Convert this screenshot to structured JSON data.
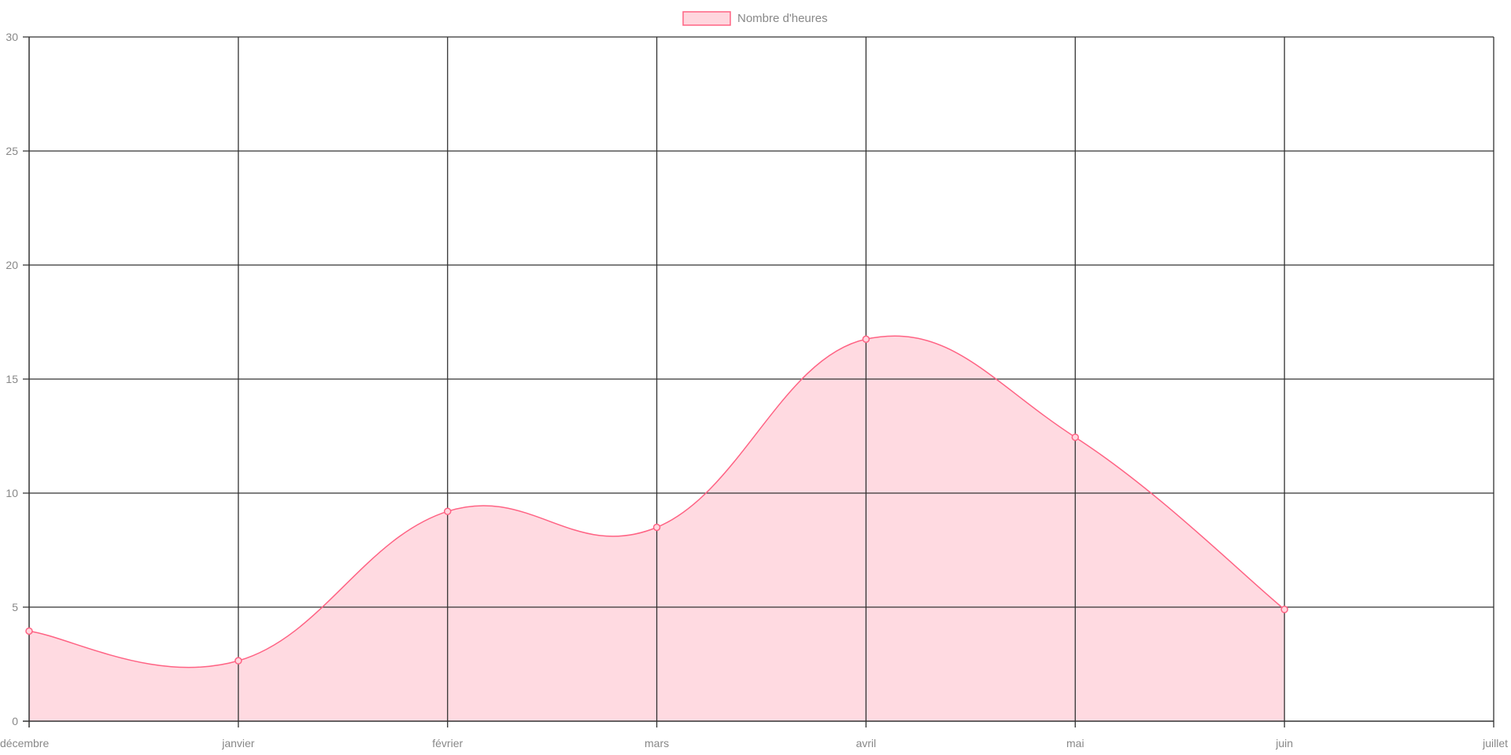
{
  "chart_data": {
    "type": "area",
    "categories": [
      "décembre",
      "janvier",
      "février",
      "mars",
      "avril",
      "mai",
      "juin",
      "juillet"
    ],
    "series": [
      {
        "name": "Nombre d'heures",
        "values": [
          3.95,
          2.65,
          9.2,
          8.5,
          16.75,
          12.45,
          4.9,
          null
        ]
      }
    ],
    "y_ticks": [
      "0",
      "5",
      "10",
      "15",
      "20",
      "25",
      "30"
    ],
    "ylim": [
      0,
      30
    ],
    "grid": true,
    "legend_position": "top-center",
    "line_style": "smooth",
    "colors": {
      "line": "#ff6384",
      "fill": "#ffd6de",
      "grid": "#333333",
      "tick_text": "#888888"
    }
  }
}
